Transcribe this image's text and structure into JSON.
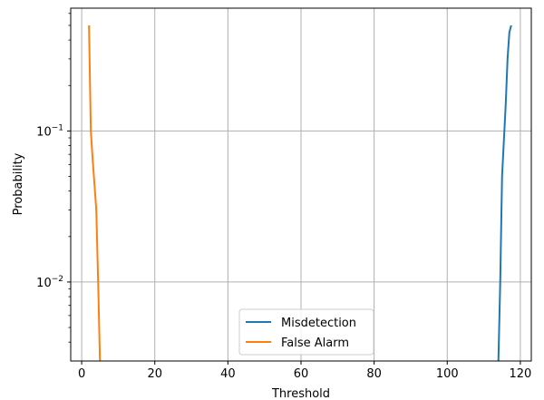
{
  "chart_data": {
    "type": "line",
    "title": "",
    "xlabel": "Threshold",
    "ylabel": "Probability",
    "xlim": [
      -3,
      123
    ],
    "ylim": [
      0.003,
      0.65
    ],
    "yscale": "log",
    "grid": true,
    "legend_position": "lower center",
    "x_ticks": [
      0,
      20,
      40,
      60,
      80,
      100,
      120
    ],
    "x_tick_labels": [
      "0",
      "20",
      "40",
      "60",
      "80",
      "100",
      "120"
    ],
    "y_ticks": [
      0.01,
      0.1
    ],
    "y_tick_labels": [
      {
        "base": "10",
        "exp": "−2"
      },
      {
        "base": "10",
        "exp": "−1"
      }
    ],
    "series": [
      {
        "name": "Misdetection",
        "color": "#1f77b4",
        "x": [
          114,
          114.5,
          115,
          116,
          116.5,
          117,
          117.5
        ],
        "y": [
          0.003,
          0.01,
          0.05,
          0.15,
          0.3,
          0.45,
          0.5
        ]
      },
      {
        "name": "False Alarm",
        "color": "#ff7f0e",
        "x": [
          2,
          2.5,
          3,
          4,
          4.5,
          5
        ],
        "y": [
          0.5,
          0.1,
          0.065,
          0.03,
          0.01,
          0.003
        ]
      }
    ]
  }
}
